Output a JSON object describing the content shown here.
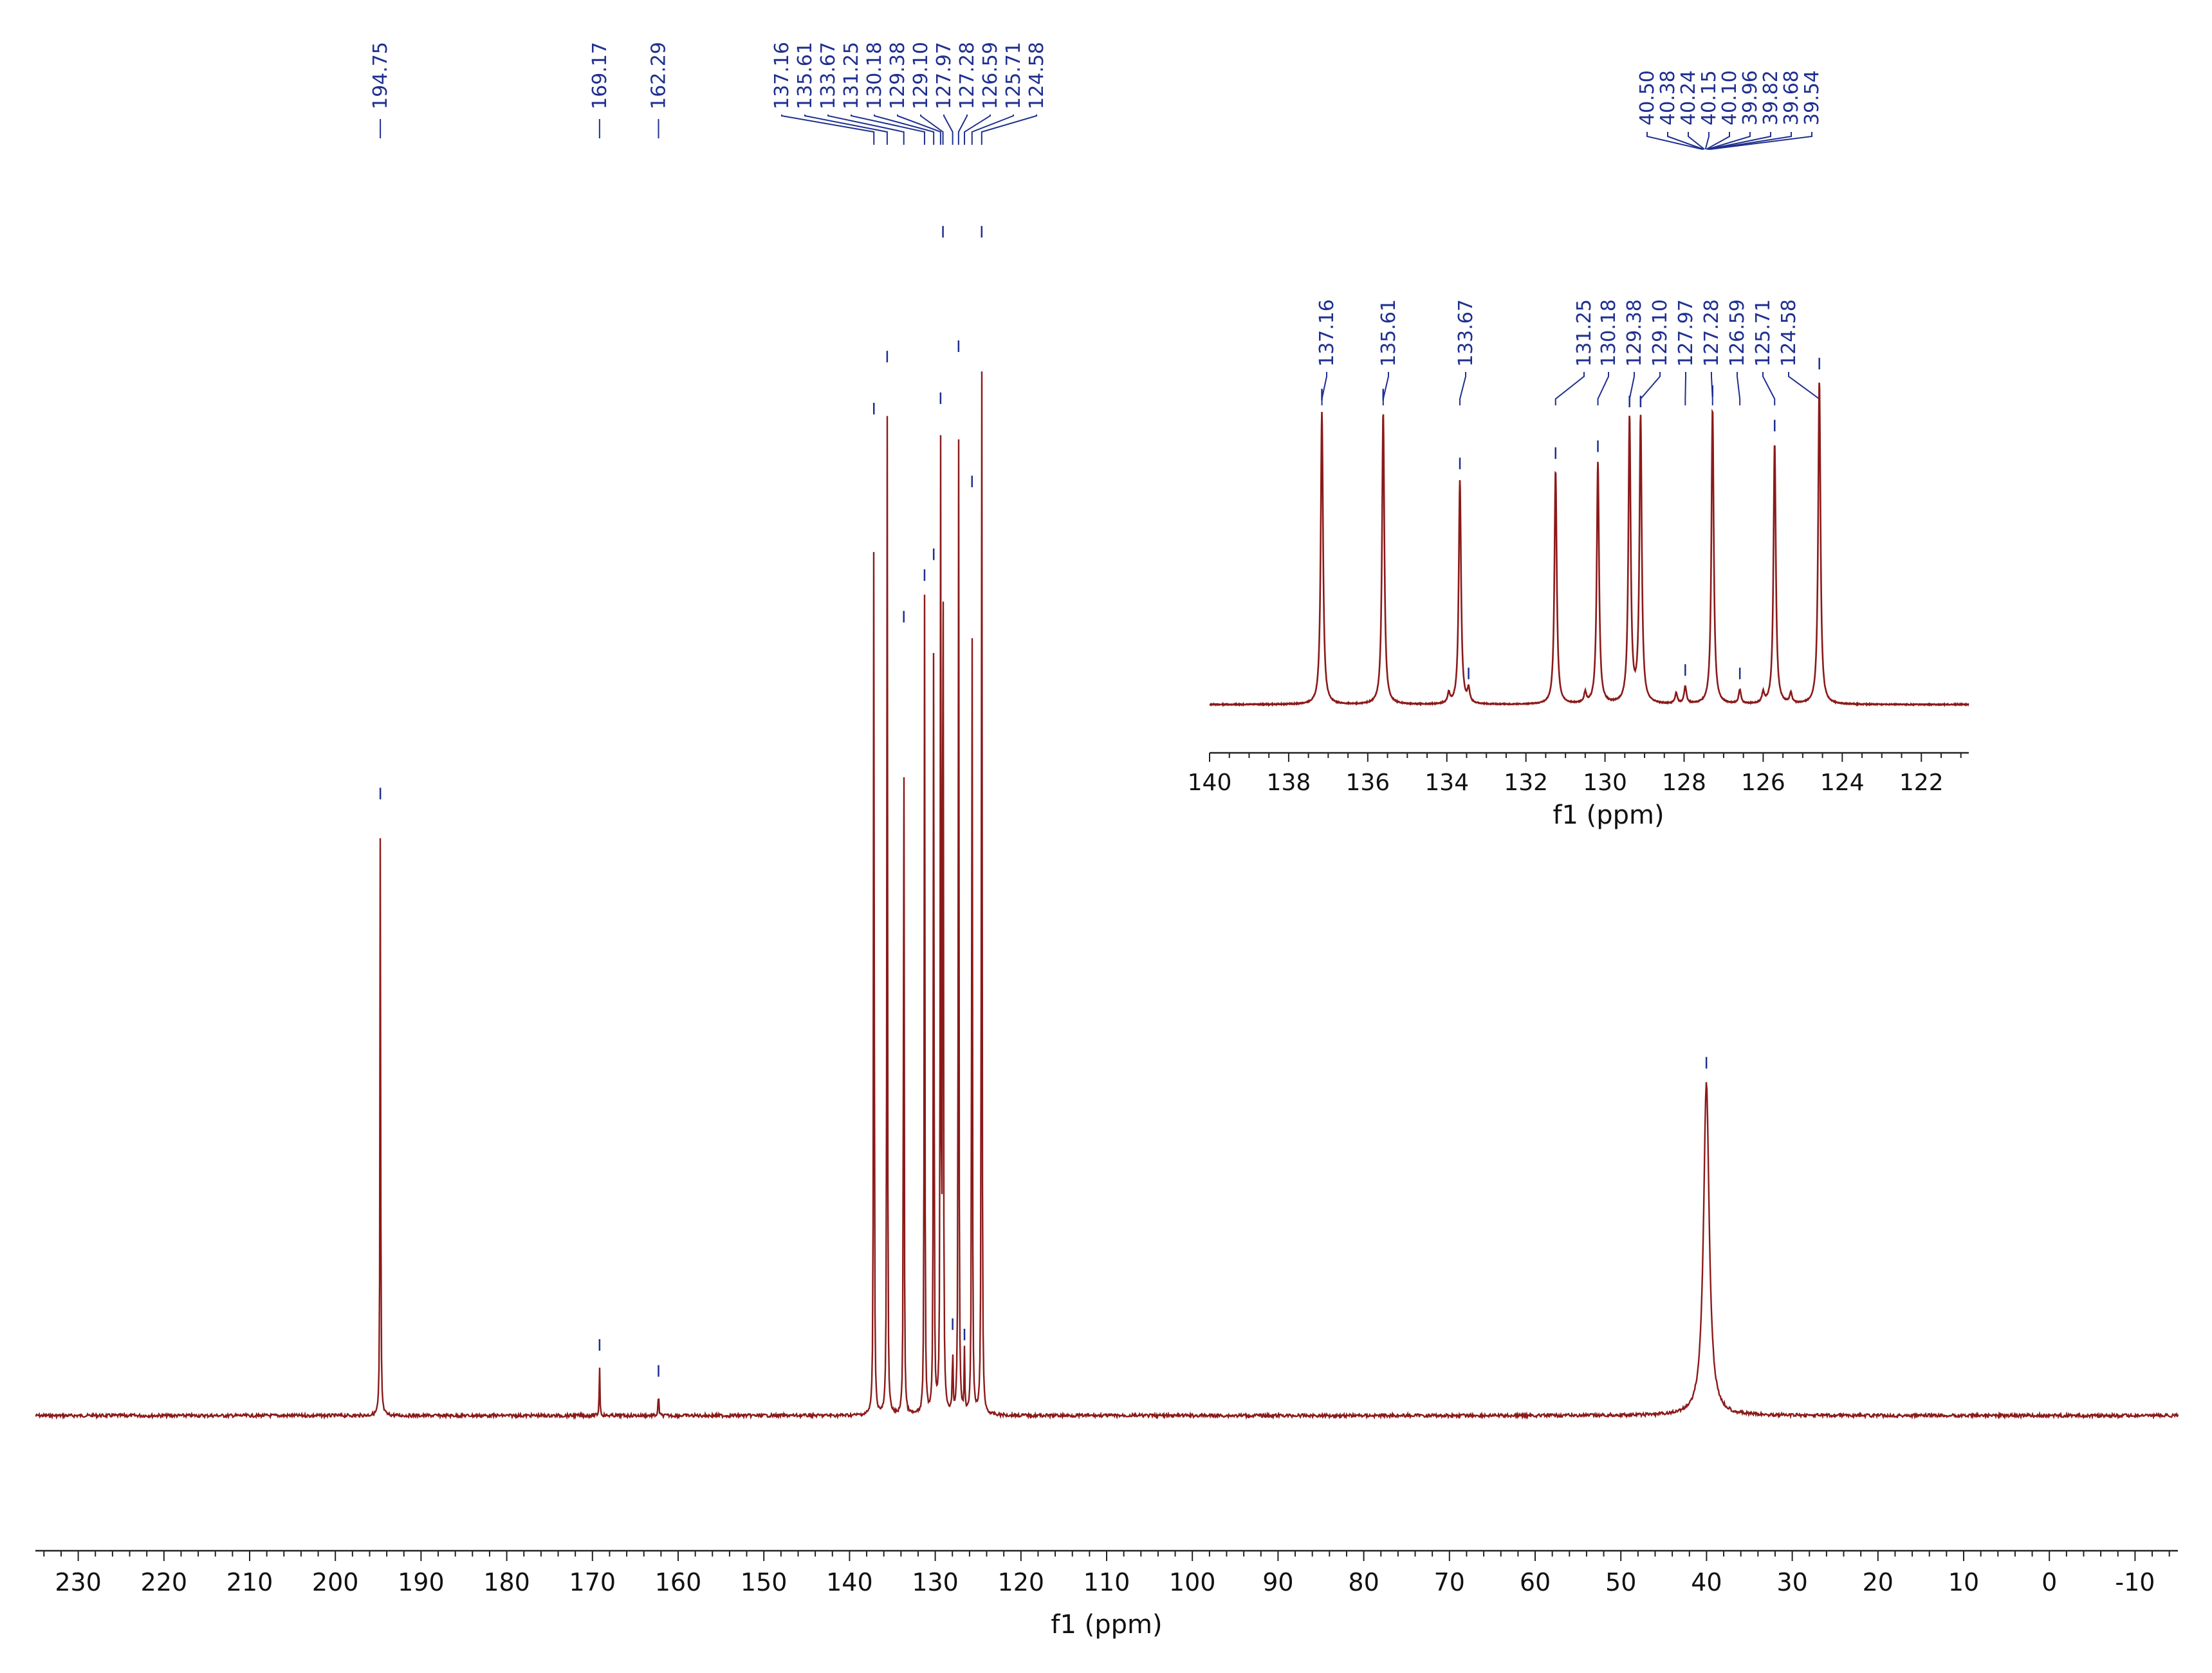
{
  "colors": {
    "spectrum": "#8b1a1a",
    "annotation": "#1f2f8f",
    "axis": "#222222",
    "background": "#ffffff"
  },
  "chart_data": [
    {
      "type": "line",
      "title": "",
      "xlabel": "f1 (ppm)",
      "ylabel": "",
      "x_reversed": true,
      "xlim": [
        235,
        -15
      ],
      "x_ticks": [
        230,
        220,
        210,
        200,
        190,
        180,
        170,
        160,
        150,
        140,
        130,
        120,
        110,
        100,
        90,
        80,
        70,
        60,
        50,
        40,
        30,
        20,
        10,
        0,
        -10
      ],
      "grid": false,
      "legend": "none",
      "series": [
        {
          "peaks": [
            {
              "ppm": 194.75,
              "rel_intensity": 0.58
            },
            {
              "ppm": 169.17,
              "rel_intensity": 0.05
            },
            {
              "ppm": 162.29,
              "rel_intensity": 0.025
            },
            {
              "ppm": 137.16,
              "rel_intensity": 0.95
            },
            {
              "ppm": 135.61,
              "rel_intensity": 1.0
            },
            {
              "ppm": 133.67,
              "rel_intensity": 0.75
            },
            {
              "ppm": 131.25,
              "rel_intensity": 0.79
            },
            {
              "ppm": 130.18,
              "rel_intensity": 0.81
            },
            {
              "ppm": 129.38,
              "rel_intensity": 0.96
            },
            {
              "ppm": 129.1,
              "rel_intensity": 1.12
            },
            {
              "ppm": 127.97,
              "rel_intensity": 0.07
            },
            {
              "ppm": 127.28,
              "rel_intensity": 1.01
            },
            {
              "ppm": 126.59,
              "rel_intensity": 0.06
            },
            {
              "ppm": 125.71,
              "rel_intensity": 0.88
            },
            {
              "ppm": 124.58,
              "rel_intensity": 1.12
            },
            {
              "ppm": 40.02,
              "rel_intensity": 0.32,
              "width": 0.4
            }
          ]
        }
      ],
      "peak_labels_groups": [
        [
          "194.75"
        ],
        [
          "169.17"
        ],
        [
          "162.29"
        ],
        [
          "137.16",
          "135.61",
          "133.67",
          "131.25",
          "130.18",
          "129.38",
          "129.10",
          "127.97",
          "127.28",
          "126.59",
          "125.71",
          "124.58"
        ],
        [
          "40.50",
          "40.38",
          "40.24",
          "40.15",
          "40.10",
          "39.96",
          "39.82",
          "39.68",
          "39.54"
        ]
      ]
    },
    {
      "type": "line",
      "title": "",
      "xlabel": "f1 (ppm)",
      "ylabel": "",
      "x_reversed": true,
      "xlim": [
        140,
        120.8
      ],
      "x_ticks": [
        140,
        138,
        136,
        134,
        132,
        130,
        128,
        126,
        124,
        122
      ],
      "grid": false,
      "legend": "none",
      "series": [
        {
          "peaks": [
            {
              "ppm": 137.16,
              "rel_intensity": 0.85
            },
            {
              "ppm": 135.61,
              "rel_intensity": 0.85
            },
            {
              "ppm": 133.67,
              "rel_intensity": 0.65
            },
            {
              "ppm": 133.95,
              "rel_intensity": 0.03
            },
            {
              "ppm": 133.45,
              "rel_intensity": 0.04
            },
            {
              "ppm": 131.25,
              "rel_intensity": 0.68
            },
            {
              "ppm": 130.5,
              "rel_intensity": 0.03
            },
            {
              "ppm": 130.18,
              "rel_intensity": 0.7
            },
            {
              "ppm": 129.38,
              "rel_intensity": 0.83
            },
            {
              "ppm": 129.1,
              "rel_intensity": 0.83
            },
            {
              "ppm": 128.2,
              "rel_intensity": 0.03
            },
            {
              "ppm": 127.97,
              "rel_intensity": 0.05
            },
            {
              "ppm": 127.28,
              "rel_intensity": 0.86
            },
            {
              "ppm": 126.59,
              "rel_intensity": 0.04
            },
            {
              "ppm": 126.0,
              "rel_intensity": 0.03
            },
            {
              "ppm": 125.71,
              "rel_intensity": 0.76
            },
            {
              "ppm": 125.3,
              "rel_intensity": 0.03
            },
            {
              "ppm": 124.58,
              "rel_intensity": 0.94
            }
          ]
        }
      ],
      "peak_labels": [
        "137.16",
        "135.61",
        "133.67",
        "131.25",
        "130.18",
        "129.38",
        "129.10",
        "127.97",
        "127.28",
        "126.59",
        "125.71",
        "124.58"
      ]
    }
  ]
}
